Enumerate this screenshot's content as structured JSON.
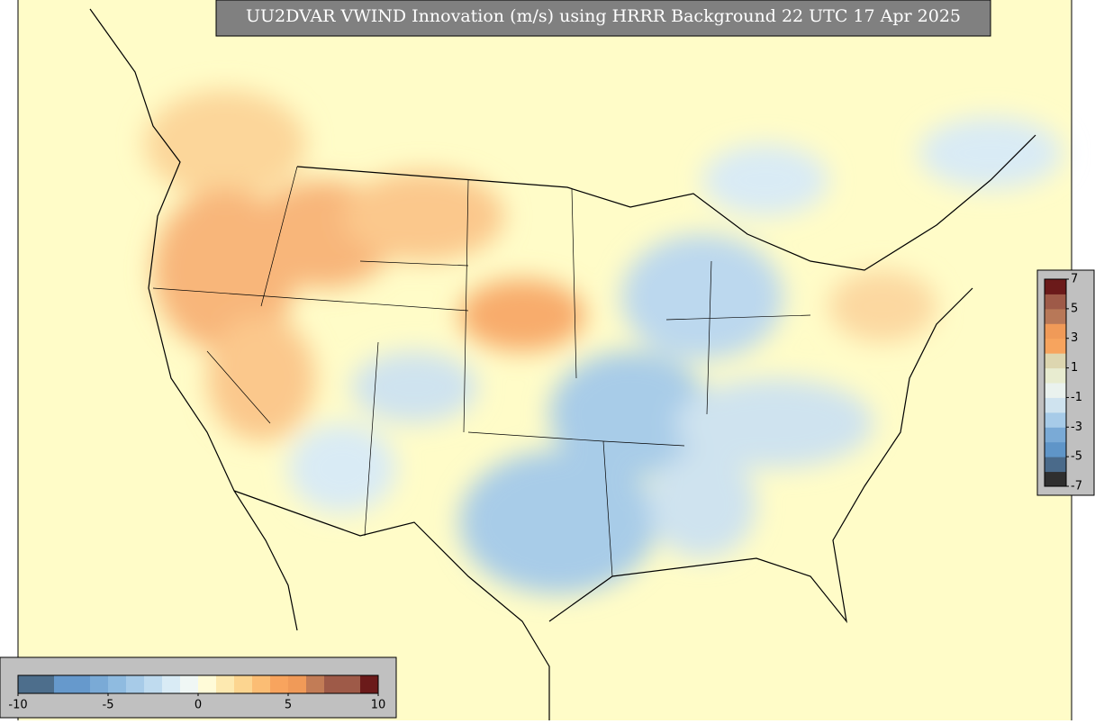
{
  "title": "UU2DVAR VWIND Innovation (m/s) using HRRR Background 22 UTC 17 Apr 2025",
  "colorbars": [
    {
      "orientation": "horizontal",
      "range": [
        -10,
        10
      ],
      "ticks": [
        -10,
        -5,
        0,
        5,
        10
      ],
      "colors": [
        "#4d6e8c",
        "#4d6e8c",
        "#6699cc",
        "#6699cc",
        "#7aaad6",
        "#8fbbe0",
        "#a7cbe8",
        "#bfdbef",
        "#d9ebf5",
        "#f0f7f5",
        "#fffbd8",
        "#fde9b0",
        "#fcd590",
        "#fbbd74",
        "#f8a45e",
        "#f09a58",
        "#c27c56",
        "#9e5a48",
        "#9e5a48",
        "#6b1a1a"
      ]
    },
    {
      "orientation": "vertical",
      "range": [
        -7,
        7
      ],
      "ticks": [
        7,
        5,
        3,
        1,
        -1,
        -3,
        -5,
        -7
      ],
      "colors": [
        "#2f2f2f",
        "#4a6a8a",
        "#5f95c8",
        "#7aaad6",
        "#a7cbe8",
        "#cfe3ef",
        "#eaf2ee",
        "#e8ecd0",
        "#ddd6b0",
        "#f7a45e",
        "#f09a58",
        "#b87858",
        "#9e5a48",
        "#6b1a1a"
      ]
    }
  ]
}
